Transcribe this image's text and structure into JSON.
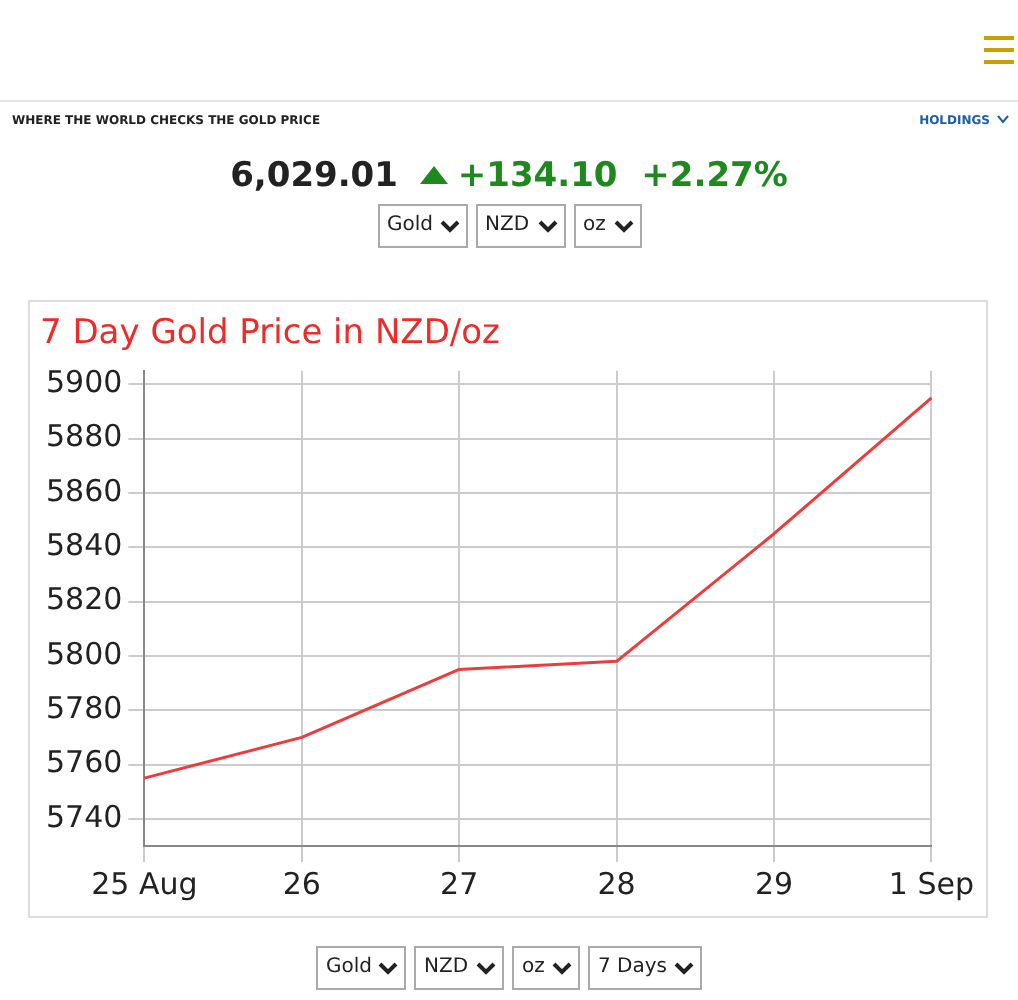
{
  "chart_data": {
    "type": "line",
    "title": "7 Day Gold Price in NZD/oz",
    "categories": [
      "25 Aug",
      "26",
      "27",
      "28",
      "29",
      "1 Sep"
    ],
    "series": [
      {
        "color": "#ee3b3b",
        "values": [
          5755,
          5770,
          5795,
          5798,
          5845,
          5895
        ]
      }
    ],
    "ylim": [
      5730,
      5905
    ],
    "yticks": [
      5740,
      5760,
      5780,
      5800,
      5820,
      5840,
      5860,
      5880,
      5900
    ],
    "grid": true,
    "legend": false,
    "marker": "none",
    "line_style": "solid",
    "annotations": [
      "WHERE THE WORLD CHECKS THE GOLD PRICE",
      "HOLDINGS",
      "6,029.01",
      "+134.10",
      "+2.27%",
      "Gold",
      "NZD",
      "oz",
      "Gold",
      "NZD",
      "oz",
      "7 Days"
    ]
  }
}
